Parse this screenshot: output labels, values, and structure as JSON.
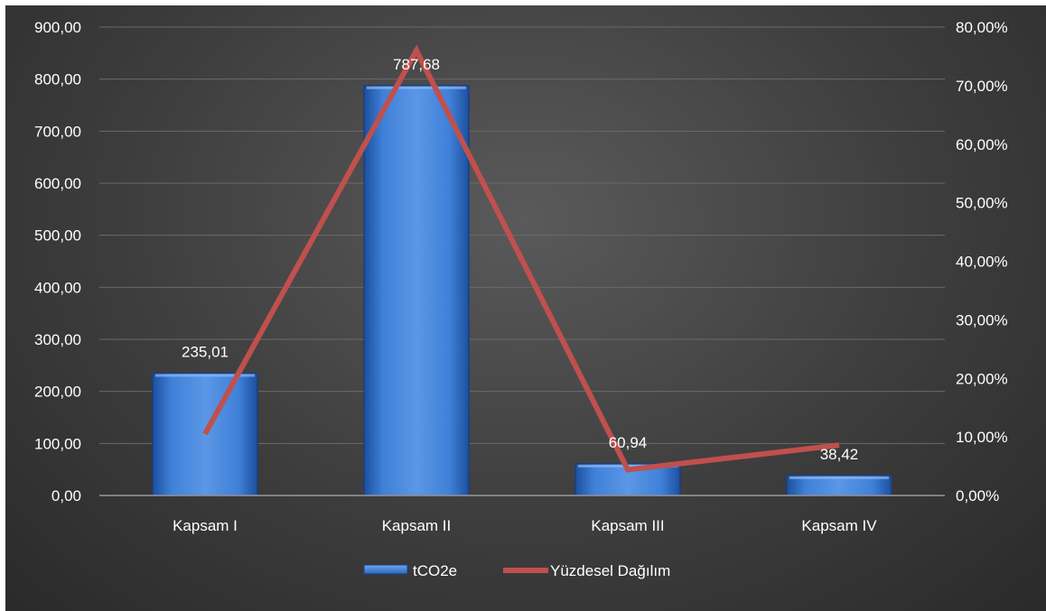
{
  "chart_data": {
    "type": "bar",
    "categories": [
      "Kapsam I",
      "Kapsam II",
      "Kapsam III",
      "Kapsam IV"
    ],
    "series": [
      {
        "name": "tCO2e",
        "type": "bar",
        "axis": "left",
        "values": [
          235.01,
          787.68,
          60.94,
          38.42
        ],
        "labels": [
          "235,01",
          "787,68",
          "60,94",
          "38,42"
        ],
        "color": "#3f7fd6"
      },
      {
        "name": "Yüzdesel Dağılım",
        "type": "line",
        "axis": "right",
        "values": [
          10.5,
          76.0,
          4.4,
          8.6
        ],
        "color": "#c0504d"
      }
    ],
    "left_axis": {
      "range": [
        0,
        900
      ],
      "ticks": [
        0,
        100,
        200,
        300,
        400,
        500,
        600,
        700,
        800,
        900
      ],
      "tick_labels": [
        "0,00",
        "100,00",
        "200,00",
        "300,00",
        "400,00",
        "500,00",
        "600,00",
        "700,00",
        "800,00",
        "900,00"
      ]
    },
    "right_axis": {
      "range": [
        0,
        80
      ],
      "ticks": [
        0,
        10,
        20,
        30,
        40,
        50,
        60,
        70,
        80
      ],
      "tick_labels": [
        "0,00%",
        "10,00%",
        "20,00%",
        "30,00%",
        "40,00%",
        "50,00%",
        "60,00%",
        "70,00%",
        "80,00%"
      ]
    },
    "grid": true,
    "legend_position": "bottom",
    "background": "#3a3a3a",
    "gridline_color": "#6a6a6a"
  }
}
